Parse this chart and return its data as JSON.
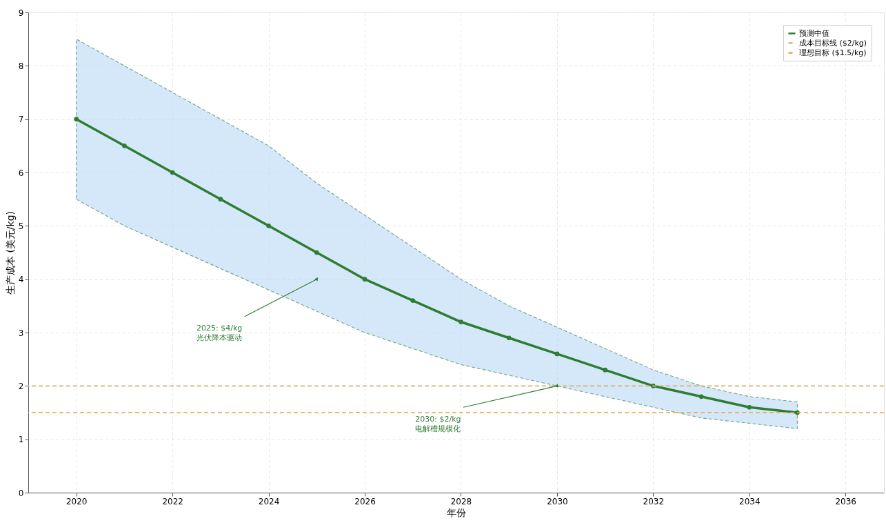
{
  "chart_data": {
    "type": "line",
    "xlabel": "年份",
    "ylabel": "生产成本 (美元/kg)",
    "x": [
      2020,
      2021,
      2022,
      2023,
      2024,
      2025,
      2026,
      2027,
      2028,
      2029,
      2030,
      2031,
      2032,
      2033,
      2034,
      2035
    ],
    "series": [
      {
        "name": "预测中值",
        "color": "#2e7d32",
        "values": [
          7,
          6.5,
          6,
          5.5,
          5,
          4.5,
          4,
          3.6,
          3.2,
          2.9,
          2.6,
          2.3,
          2.0,
          1.8,
          1.6,
          1.5
        ],
        "lower": [
          5.5,
          5.0,
          4.6,
          4.2,
          3.8,
          3.4,
          3.0,
          2.7,
          2.4,
          2.2,
          2.0,
          1.8,
          1.6,
          1.4,
          1.3,
          1.2
        ],
        "upper": [
          8.5,
          8.0,
          7.5,
          7.0,
          6.5,
          5.8,
          5.2,
          4.6,
          4.0,
          3.5,
          3.1,
          2.7,
          2.3,
          2.0,
          1.8,
          1.7
        ]
      }
    ],
    "marker": "circle",
    "line_style": "solid",
    "xlim": [
      2019,
      2036.8
    ],
    "xticks": [
      2020,
      2022,
      2024,
      2026,
      2028,
      2030,
      2032,
      2034,
      2036
    ],
    "ylim": [
      0,
      9
    ],
    "yticks": [
      0,
      1,
      2,
      3,
      4,
      5,
      6,
      7,
      8,
      9
    ],
    "ref_lines": [
      {
        "axis": "y",
        "value": 2,
        "label": "成本目标线 ($2/kg)",
        "color": "#d9b46a",
        "line_style": "dashed"
      },
      {
        "axis": "y",
        "value": 1.5,
        "label": "理想目标 ($1.5/kg)",
        "color": "#f0a040",
        "line_style": "dashed"
      }
    ],
    "annotations": [
      {
        "text": "2025: $4/kg\n光伏降本驱动",
        "x": 2025,
        "y": 4
      },
      {
        "text": "2030: $2/kg\n电解槽规模化",
        "x": 2030,
        "y": 2
      }
    ],
    "grid": true,
    "legend": "top right"
  }
}
